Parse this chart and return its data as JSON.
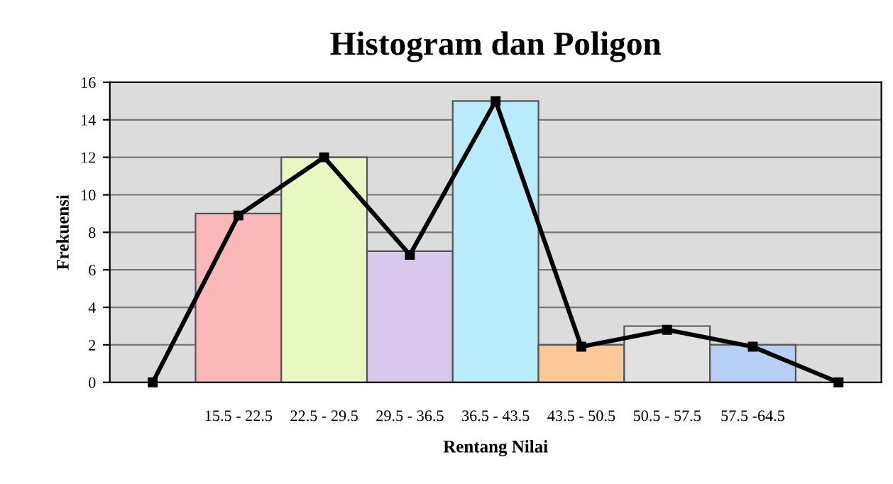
{
  "chart_data": {
    "type": "bar",
    "title": "Histogram dan Poligon",
    "xlabel": "Rentang Nilai",
    "ylabel": "Frekuensi",
    "categories": [
      null,
      "15.5 - 22.5",
      "22.5 - 29.5",
      "29.5 - 36.5",
      "36.5 - 43.5",
      "43.5 - 50.5",
      "50.5 - 57.5",
      "57.5 -64.5",
      null
    ],
    "series": [
      {
        "values": [
          null,
          9,
          12,
          7,
          15,
          2,
          3,
          2,
          null
        ],
        "colors": [
          "#ffffff",
          "#fbb8b8",
          "#e8f8c0",
          "#d8c8ec",
          "#b8ecfa",
          "#fcc898",
          "#e0e0e0",
          "#b8d0f8",
          "#ffffff"
        ]
      },
      {
        "type": "line",
        "color": "#000000",
        "values": [
          0,
          8.9,
          12,
          6.8,
          15,
          1.9,
          2.8,
          1.9,
          0
        ]
      }
    ],
    "ylim": [
      0,
      16
    ],
    "yticks": [
      0,
      2,
      4,
      6,
      8,
      10,
      12,
      14,
      16
    ],
    "grid": "y",
    "marker": "square",
    "line_style": "solid",
    "legend": false
  }
}
